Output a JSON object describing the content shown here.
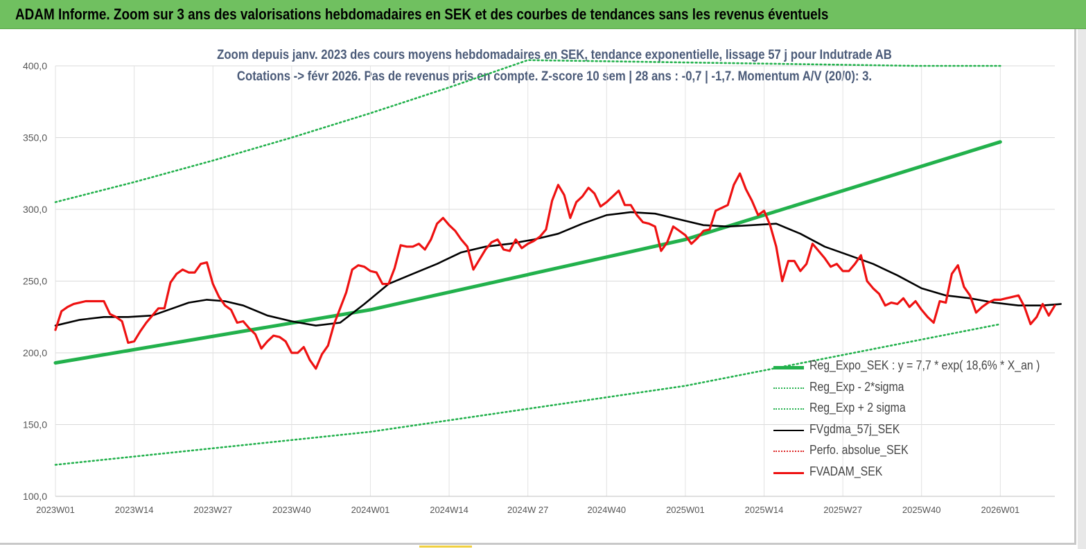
{
  "banner": {
    "title": "ADAM Informe. Zoom sur 3 ans des valorisations hebdomadaires en SEK et des courbes de tendances sans les revenus éventuels"
  },
  "chart_data": {
    "type": "line",
    "title_line1": "Zoom depuis janv. 2023 des cours moyens hebdomadaires en SEK, tendance exponentielle, lissage 57 j pour Indutrade AB",
    "title_line2": "Cotations -> févr 2026.  Pas de revenus pris en compte. Z-score 10 sem | 28 ans : -0,7 | -1,7. Momentum A/V (20/0): 3.",
    "ylim": [
      100,
      400
    ],
    "yticks": [
      "400,0",
      "350,0",
      "300,0",
      "250,0",
      "200,0",
      "150,0",
      "100,0"
    ],
    "ytick_values": [
      400,
      350,
      300,
      250,
      200,
      150,
      100
    ],
    "xticks": [
      "2023W01",
      "2023W14",
      "2023W27",
      "2023W40",
      "2024W01",
      "2024W14",
      "2024W 27",
      "2024W40",
      "2025W01",
      "2025W14",
      "2025W27",
      "2025W40",
      "2026W01"
    ],
    "week_count": 165,
    "grid": true,
    "legend_position": "bottom-right",
    "series": [
      {
        "name": "Reg_Expo_SEK : y = 7,7 * exp( 18,6% *  X_an )",
        "color": "#22b14c",
        "style": "solid-thick",
        "points": [
          [
            0,
            193
          ],
          [
            52,
            230
          ],
          [
            104,
            279
          ],
          [
            156,
            347
          ]
        ]
      },
      {
        "name": "Reg_Exp - 2*sigma",
        "color": "#22b14c",
        "style": "dotted",
        "points": [
          [
            0,
            122
          ],
          [
            52,
            145
          ],
          [
            104,
            177
          ],
          [
            156,
            220
          ]
        ]
      },
      {
        "name": "Reg_Exp + 2 sigma",
        "color": "#22b14c",
        "style": "dotted",
        "points": [
          [
            0,
            305
          ],
          [
            13,
            319
          ],
          [
            26,
            334
          ],
          [
            39,
            350
          ],
          [
            52,
            367
          ],
          [
            65,
            385
          ],
          [
            78,
            404
          ],
          [
            142,
            400
          ],
          [
            156,
            400
          ]
        ]
      },
      {
        "name": "FVgdma_57j_SEK",
        "color": "#000000",
        "style": "solid",
        "points": [
          [
            0,
            219
          ],
          [
            4,
            223
          ],
          [
            8,
            225
          ],
          [
            12,
            225
          ],
          [
            16,
            226
          ],
          [
            20,
            232
          ],
          [
            22,
            235
          ],
          [
            25,
            237
          ],
          [
            28,
            236
          ],
          [
            31,
            233
          ],
          [
            35,
            226
          ],
          [
            39,
            222
          ],
          [
            43,
            219
          ],
          [
            47,
            221
          ],
          [
            51,
            234
          ],
          [
            55,
            248
          ],
          [
            59,
            255
          ],
          [
            63,
            262
          ],
          [
            67,
            270
          ],
          [
            71,
            274
          ],
          [
            75,
            276
          ],
          [
            79,
            279
          ],
          [
            83,
            283
          ],
          [
            87,
            290
          ],
          [
            91,
            296
          ],
          [
            95,
            298
          ],
          [
            99,
            297
          ],
          [
            103,
            293
          ],
          [
            107,
            289
          ],
          [
            111,
            288
          ],
          [
            115,
            289
          ],
          [
            119,
            290
          ],
          [
            123,
            283
          ],
          [
            127,
            274
          ],
          [
            131,
            268
          ],
          [
            135,
            262
          ],
          [
            139,
            254
          ],
          [
            143,
            245
          ],
          [
            147,
            240
          ],
          [
            151,
            238
          ],
          [
            155,
            235
          ],
          [
            159,
            233
          ],
          [
            163,
            233
          ],
          [
            166,
            234
          ]
        ]
      },
      {
        "name": "Perfo. absolue_SEK",
        "color": "#dd2222",
        "style": "dotted",
        "points": []
      },
      {
        "name": "FVADAM_SEK",
        "color": "#ee1111",
        "style": "solid-thick",
        "points": [
          [
            0,
            216
          ],
          [
            1,
            229
          ],
          [
            2,
            232
          ],
          [
            3,
            234
          ],
          [
            4,
            235
          ],
          [
            5,
            236
          ],
          [
            6,
            236
          ],
          [
            7,
            236
          ],
          [
            8,
            236
          ],
          [
            9,
            227
          ],
          [
            10,
            225
          ],
          [
            11,
            222
          ],
          [
            12,
            207
          ],
          [
            13,
            208
          ],
          [
            14,
            215
          ],
          [
            15,
            221
          ],
          [
            16,
            226
          ],
          [
            17,
            231
          ],
          [
            18,
            231
          ],
          [
            19,
            249
          ],
          [
            20,
            255
          ],
          [
            21,
            258
          ],
          [
            22,
            256
          ],
          [
            23,
            256
          ],
          [
            24,
            262
          ],
          [
            25,
            263
          ],
          [
            26,
            248
          ],
          [
            27,
            239
          ],
          [
            28,
            233
          ],
          [
            29,
            230
          ],
          [
            30,
            221
          ],
          [
            31,
            222
          ],
          [
            32,
            217
          ],
          [
            33,
            213
          ],
          [
            34,
            203
          ],
          [
            35,
            208
          ],
          [
            36,
            212
          ],
          [
            37,
            211
          ],
          [
            38,
            208
          ],
          [
            39,
            200
          ],
          [
            40,
            200
          ],
          [
            41,
            204
          ],
          [
            42,
            195
          ],
          [
            43,
            189
          ],
          [
            44,
            199
          ],
          [
            45,
            205
          ],
          [
            46,
            220
          ],
          [
            47,
            231
          ],
          [
            48,
            242
          ],
          [
            49,
            258
          ],
          [
            50,
            261
          ],
          [
            51,
            260
          ],
          [
            52,
            257
          ],
          [
            53,
            256
          ],
          [
            54,
            248
          ],
          [
            55,
            248
          ],
          [
            56,
            259
          ],
          [
            57,
            275
          ],
          [
            58,
            274
          ],
          [
            59,
            274
          ],
          [
            60,
            276
          ],
          [
            61,
            272
          ],
          [
            62,
            279
          ],
          [
            63,
            290
          ],
          [
            64,
            294
          ],
          [
            65,
            289
          ],
          [
            66,
            285
          ],
          [
            67,
            279
          ],
          [
            68,
            274
          ],
          [
            69,
            258
          ],
          [
            70,
            265
          ],
          [
            71,
            272
          ],
          [
            72,
            277
          ],
          [
            73,
            279
          ],
          [
            74,
            272
          ],
          [
            75,
            271
          ],
          [
            76,
            279
          ],
          [
            77,
            273
          ],
          [
            78,
            276
          ],
          [
            79,
            278
          ],
          [
            80,
            281
          ],
          [
            81,
            286
          ],
          [
            82,
            306
          ],
          [
            83,
            317
          ],
          [
            84,
            310
          ],
          [
            85,
            294
          ],
          [
            86,
            305
          ],
          [
            87,
            309
          ],
          [
            88,
            315
          ],
          [
            89,
            311
          ],
          [
            90,
            302
          ],
          [
            91,
            305
          ],
          [
            92,
            309
          ],
          [
            93,
            313
          ],
          [
            94,
            303
          ],
          [
            95,
            303
          ],
          [
            96,
            296
          ],
          [
            97,
            291
          ],
          [
            98,
            290
          ],
          [
            99,
            288
          ],
          [
            100,
            271
          ],
          [
            101,
            277
          ],
          [
            102,
            288
          ],
          [
            103,
            285
          ],
          [
            104,
            282
          ],
          [
            105,
            276
          ],
          [
            106,
            280
          ],
          [
            107,
            285
          ],
          [
            108,
            286
          ],
          [
            109,
            299
          ],
          [
            110,
            301
          ],
          [
            111,
            303
          ],
          [
            112,
            317
          ],
          [
            113,
            325
          ],
          [
            114,
            314
          ],
          [
            115,
            306
          ],
          [
            116,
            296
          ],
          [
            117,
            299
          ],
          [
            118,
            289
          ],
          [
            119,
            274
          ],
          [
            120,
            250
          ],
          [
            121,
            264
          ],
          [
            122,
            264
          ],
          [
            123,
            257
          ],
          [
            124,
            262
          ],
          [
            125,
            276
          ],
          [
            126,
            271
          ],
          [
            127,
            266
          ],
          [
            128,
            260
          ],
          [
            129,
            262
          ],
          [
            130,
            257
          ],
          [
            131,
            257
          ],
          [
            132,
            262
          ],
          [
            133,
            268
          ],
          [
            134,
            250
          ],
          [
            135,
            245
          ],
          [
            136,
            241
          ],
          [
            137,
            233
          ],
          [
            138,
            235
          ],
          [
            139,
            234
          ],
          [
            140,
            238
          ],
          [
            141,
            232
          ],
          [
            142,
            236
          ],
          [
            143,
            230
          ],
          [
            144,
            225
          ],
          [
            145,
            221
          ],
          [
            146,
            236
          ],
          [
            147,
            235
          ],
          [
            148,
            255
          ],
          [
            149,
            261
          ],
          [
            150,
            246
          ],
          [
            151,
            240
          ],
          [
            152,
            228
          ],
          [
            153,
            232
          ],
          [
            154,
            235
          ],
          [
            155,
            237
          ],
          [
            156,
            237
          ],
          [
            157,
            238
          ],
          [
            158,
            239
          ],
          [
            159,
            240
          ],
          [
            160,
            232
          ],
          [
            161,
            220
          ],
          [
            162,
            225
          ],
          [
            163,
            234
          ],
          [
            164,
            226
          ],
          [
            165,
            233
          ]
        ]
      }
    ]
  }
}
